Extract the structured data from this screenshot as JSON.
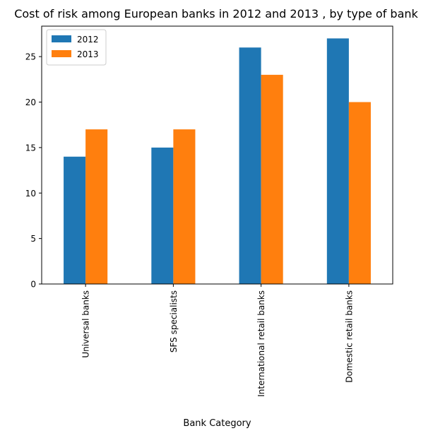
{
  "chart_data": {
    "type": "bar",
    "title": "Cost of risk among European banks in 2012 and 2013 , by type of bank",
    "xlabel": "Bank Category",
    "ylabel": "",
    "categories": [
      "Universal banks",
      "SFS specialists",
      "International retail banks",
      "Domestic retail banks"
    ],
    "series": [
      {
        "name": "2012",
        "color": "#1f77b4",
        "values": [
          14,
          15,
          26,
          27
        ]
      },
      {
        "name": "2013",
        "color": "#ff7f0e",
        "values": [
          17,
          17,
          23,
          20
        ]
      }
    ],
    "ylim": [
      0,
      28.35
    ],
    "yticks": [
      0,
      5,
      10,
      15,
      20,
      25
    ],
    "grid": false,
    "legend_position": "top-left"
  }
}
